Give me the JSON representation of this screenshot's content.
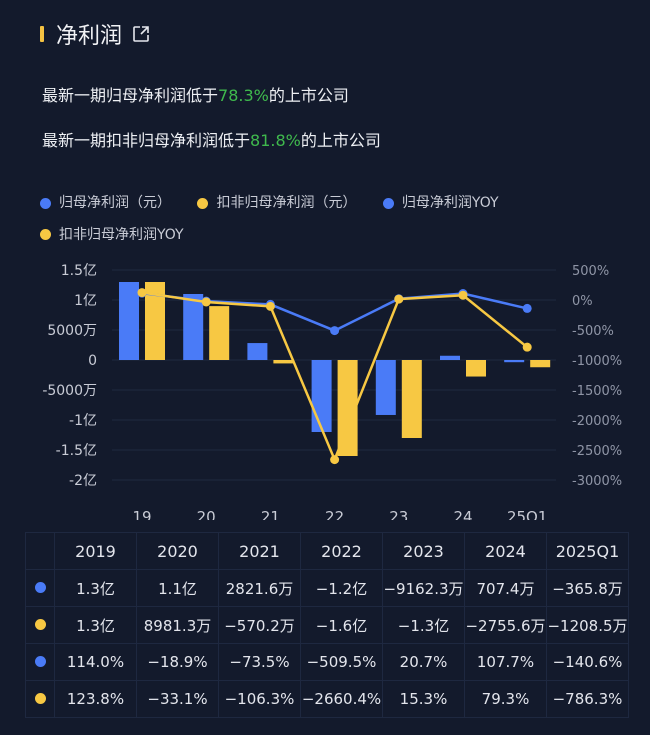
{
  "header": {
    "title": "净利润",
    "icon": "external-link-icon"
  },
  "stats": [
    {
      "prefix": "最新一期归母净利润低于",
      "pct": "78.3%",
      "suffix": "的上市公司"
    },
    {
      "prefix": "最新一期扣非归母净利润低于",
      "pct": "81.8%",
      "suffix": "的上市公司"
    }
  ],
  "colors": {
    "blue": "#4a7bf7",
    "yellow": "#f7c843",
    "green": "#3fb94d",
    "background": "#131a2c"
  },
  "chart_data": {
    "type": "bar+line",
    "categories": [
      "19",
      "20",
      "21",
      "22",
      "23",
      "24",
      "25Q1"
    ],
    "left_axis": {
      "ticks": [
        "1.5亿",
        "1亿",
        "5000万",
        "0",
        "-5000万",
        "-1亿",
        "-1.5亿",
        "-2亿"
      ],
      "range": [
        -200000000,
        150000000
      ]
    },
    "right_axis": {
      "ticks": [
        "500%",
        "0%",
        "-500%",
        "-1000%",
        "-1500%",
        "-2000%",
        "-2500%",
        "-3000%"
      ],
      "range": [
        -3000,
        500
      ]
    },
    "grid": true,
    "legend_position": "top-left",
    "series": [
      {
        "name": "归母净利润（元）",
        "type": "bar",
        "axis": "left",
        "color": "#4a7bf7",
        "values": [
          130000000,
          110000000,
          28216000,
          -120000000,
          -91623000,
          7074000,
          -3658000
        ]
      },
      {
        "name": "扣非归母净利润（元）",
        "type": "bar",
        "axis": "left",
        "color": "#f7c843",
        "values": [
          130000000,
          89813000,
          -5702000,
          -160000000,
          -130000000,
          -27556000,
          -12085000
        ]
      },
      {
        "name": "归母净利润YOY",
        "type": "line",
        "axis": "right",
        "color": "#4a7bf7",
        "values": [
          114.0,
          -18.9,
          -73.5,
          -509.5,
          20.7,
          107.7,
          -140.6
        ]
      },
      {
        "name": "扣非归母净利润YOY",
        "type": "line",
        "axis": "right",
        "color": "#f7c843",
        "values": [
          123.8,
          -33.1,
          -106.3,
          -2660.4,
          15.3,
          79.3,
          -786.3
        ]
      }
    ]
  },
  "table": {
    "headers": [
      "2019",
      "2020",
      "2021",
      "2022",
      "2023",
      "2024",
      "2025Q1"
    ],
    "rows": [
      {
        "color": "#4a7bf7",
        "cells": [
          "1.3亿",
          "1.1亿",
          "2821.6万",
          "−1.2亿",
          "−9162.3万",
          "707.4万",
          "−365.8万"
        ]
      },
      {
        "color": "#f7c843",
        "cells": [
          "1.3亿",
          "8981.3万",
          "−570.2万",
          "−1.6亿",
          "−1.3亿",
          "−2755.6万",
          "−1208.5万"
        ]
      },
      {
        "color": "#4a7bf7",
        "cells": [
          "114.0%",
          "−18.9%",
          "−73.5%",
          "−509.5%",
          "20.7%",
          "107.7%",
          "−140.6%"
        ]
      },
      {
        "color": "#f7c843",
        "cells": [
          "123.8%",
          "−33.1%",
          "−106.3%",
          "−2660.4%",
          "15.3%",
          "79.3%",
          "−786.3%"
        ]
      }
    ]
  }
}
